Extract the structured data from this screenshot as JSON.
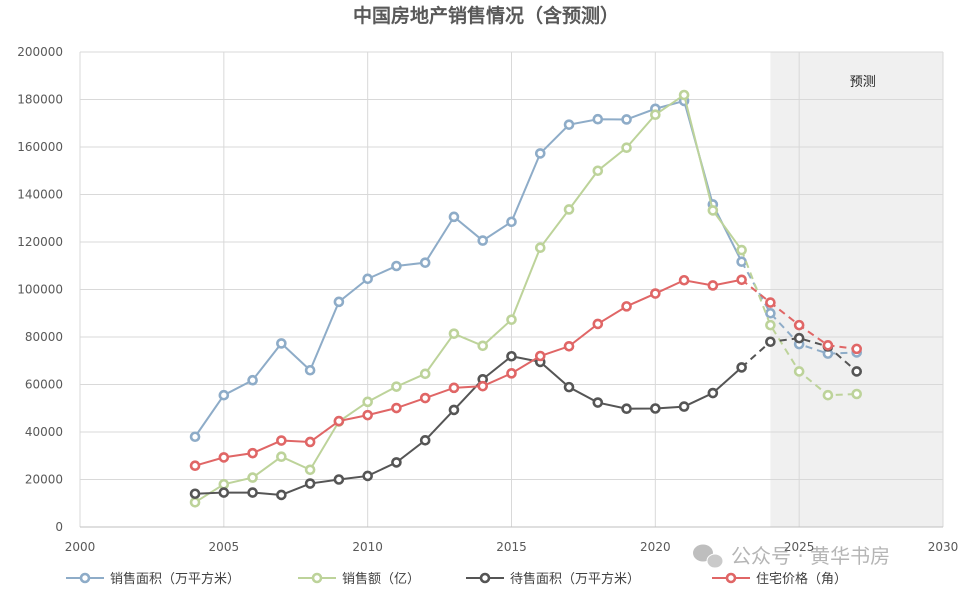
{
  "chart_data": {
    "type": "line",
    "title": "中国房地产销售情况（含预测）",
    "xlim": [
      2000,
      2030
    ],
    "ylim": [
      0,
      200000
    ],
    "x_ticks": [
      "2000",
      "2005",
      "2010",
      "2015",
      "2020",
      "2025",
      "2030"
    ],
    "y_ticks": [
      "0",
      "20000",
      "40000",
      "60000",
      "80000",
      "100000",
      "120000",
      "140000",
      "160000",
      "180000",
      "200000"
    ],
    "grid": true,
    "legend_position": "bottom",
    "forecast_region": {
      "label": "预测",
      "x_start": 2024,
      "x_end": 2030,
      "color": "#f0f0f0"
    },
    "series": [
      {
        "name": "销售面积（万平方米）",
        "color": "#8eacc8",
        "x": [
          2004,
          2005,
          2006,
          2007,
          2008,
          2009,
          2010,
          2011,
          2012,
          2013,
          2014,
          2015,
          2016,
          2017,
          2018,
          2019,
          2020,
          2021,
          2022,
          2023
        ],
        "values": [
          38000,
          55500,
          61800,
          77300,
          66000,
          94800,
          104500,
          109900,
          111300,
          130600,
          120600,
          128500,
          157300,
          169400,
          171700,
          171600,
          176100,
          179400,
          135800,
          111700
        ],
        "forecast_x": [
          2023,
          2024,
          2025,
          2026,
          2027
        ],
        "forecast_values": [
          111700,
          90000,
          77000,
          73000,
          73500
        ]
      },
      {
        "name": "销售额（亿）",
        "color": "#bdd39a",
        "x": [
          2004,
          2005,
          2006,
          2007,
          2008,
          2009,
          2010,
          2011,
          2012,
          2013,
          2014,
          2015,
          2016,
          2017,
          2018,
          2019,
          2020,
          2021,
          2022,
          2023
        ],
        "values": [
          10400,
          18000,
          20800,
          29600,
          24100,
          44400,
          52700,
          59100,
          64500,
          81400,
          76300,
          87300,
          117600,
          133700,
          150000,
          159700,
          173600,
          181900,
          133300,
          116600
        ],
        "forecast_x": [
          2023,
          2024,
          2025,
          2026,
          2027
        ],
        "forecast_values": [
          116600,
          85000,
          65500,
          55500,
          56000
        ]
      },
      {
        "name": "待售面积（万平方米）",
        "color": "#555555",
        "x": [
          2004,
          2005,
          2006,
          2007,
          2008,
          2009,
          2010,
          2011,
          2012,
          2013,
          2014,
          2015,
          2016,
          2017,
          2018,
          2019,
          2020,
          2021,
          2022,
          2023
        ],
        "values": [
          14000,
          14500,
          14500,
          13500,
          18300,
          20000,
          21500,
          27200,
          36500,
          49300,
          62200,
          71900,
          69500,
          58900,
          52400,
          49800,
          49900,
          50700,
          56400,
          67200
        ],
        "forecast_x": [
          2023,
          2024,
          2025,
          2026,
          2027
        ],
        "forecast_values": [
          67200,
          78000,
          79500,
          76000,
          65500
        ]
      },
      {
        "name": "住宅价格（角）",
        "color": "#e06666",
        "x": [
          2004,
          2005,
          2006,
          2007,
          2008,
          2009,
          2010,
          2011,
          2012,
          2013,
          2014,
          2015,
          2016,
          2017,
          2018,
          2019,
          2020,
          2021,
          2022,
          2023
        ],
        "values": [
          25800,
          29300,
          31100,
          36400,
          35800,
          44600,
          47100,
          50100,
          54300,
          58600,
          59300,
          64700,
          72000,
          76100,
          85500,
          92900,
          98300,
          103900,
          101700,
          104100
        ],
        "forecast_x": [
          2023,
          2024,
          2025,
          2026,
          2027
        ],
        "forecast_values": [
          104100,
          94500,
          85000,
          76500,
          75000
        ]
      }
    ]
  },
  "watermark": {
    "text": "公众号 · 黄华书房",
    "icon": "wechat-icon"
  }
}
